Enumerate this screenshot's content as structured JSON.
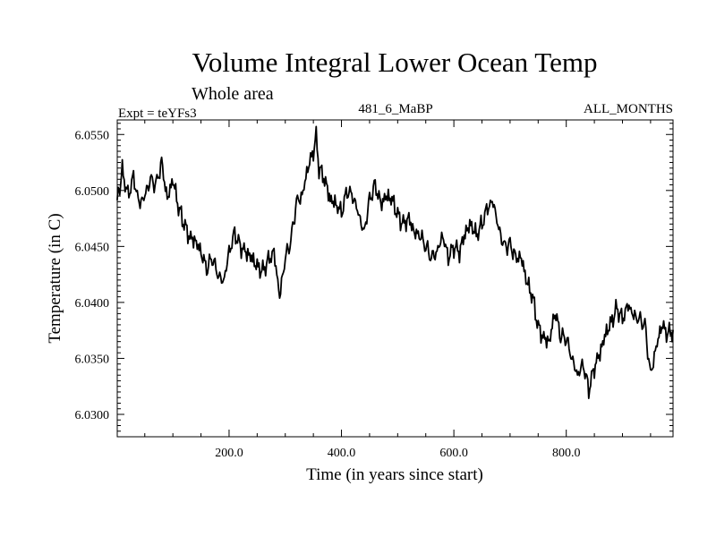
{
  "chart_data": {
    "type": "line",
    "title": "Volume Integral Lower Ocean Temp",
    "subtitle": "Whole area",
    "experiment_label": "Expt = teYFs3",
    "period_label": "481_6_MaBP",
    "months_label": "ALL_MONTHS",
    "xlabel": "Time (in years since start)",
    "ylabel": "Temperature (in C)",
    "xlim": [
      1,
      990
    ],
    "ylim": [
      6.028,
      6.0563
    ],
    "x_ticks": [
      {
        "value": 200,
        "label": "200.0"
      },
      {
        "value": 400,
        "label": "400.0"
      },
      {
        "value": 600,
        "label": "600.0"
      },
      {
        "value": 800,
        "label": "800.0"
      }
    ],
    "y_ticks": [
      {
        "value": 6.03,
        "label": "6.0300"
      },
      {
        "value": 6.035,
        "label": "6.0350"
      },
      {
        "value": 6.04,
        "label": "6.0400"
      },
      {
        "value": 6.045,
        "label": "6.0450"
      },
      {
        "value": 6.05,
        "label": "6.0500"
      },
      {
        "value": 6.055,
        "label": "6.0550"
      }
    ],
    "series": [
      {
        "name": "Volume Integral Lower Ocean Temp",
        "color": "#000000",
        "x": [
          1,
          10,
          20,
          30,
          40,
          50,
          60,
          70,
          80,
          90,
          100,
          110,
          120,
          130,
          140,
          150,
          160,
          170,
          180,
          190,
          200,
          210,
          220,
          230,
          240,
          250,
          260,
          270,
          280,
          290,
          300,
          310,
          320,
          330,
          340,
          350,
          355,
          360,
          370,
          380,
          390,
          400,
          410,
          420,
          430,
          440,
          450,
          460,
          470,
          480,
          490,
          500,
          510,
          520,
          530,
          540,
          550,
          560,
          570,
          580,
          590,
          600,
          610,
          620,
          630,
          640,
          650,
          660,
          670,
          680,
          690,
          700,
          710,
          720,
          730,
          740,
          750,
          760,
          770,
          780,
          790,
          800,
          810,
          820,
          830,
          840,
          850,
          860,
          870,
          880,
          890,
          900,
          910,
          920,
          930,
          940,
          950,
          960,
          970,
          980,
          990
        ],
        "values": [
          6.049,
          6.0518,
          6.0495,
          6.0512,
          6.0488,
          6.0495,
          6.051,
          6.0505,
          6.0525,
          6.0492,
          6.051,
          6.0485,
          6.047,
          6.0458,
          6.0455,
          6.0445,
          6.043,
          6.044,
          6.0425,
          6.0418,
          6.0445,
          6.0462,
          6.045,
          6.0445,
          6.044,
          6.0432,
          6.0428,
          6.0438,
          6.0445,
          6.0405,
          6.044,
          6.0455,
          6.049,
          6.0495,
          6.052,
          6.0535,
          6.0548,
          6.052,
          6.051,
          6.0492,
          6.0488,
          6.048,
          6.05,
          6.0495,
          6.048,
          6.0462,
          6.0492,
          6.0505,
          6.0488,
          6.0495,
          6.0492,
          6.0478,
          6.047,
          6.0475,
          6.0462,
          6.046,
          6.045,
          6.044,
          6.0445,
          6.046,
          6.044,
          6.045,
          6.0445,
          6.0462,
          6.047,
          6.046,
          6.047,
          6.0485,
          6.049,
          6.0465,
          6.045,
          6.0452,
          6.044,
          6.044,
          6.0418,
          6.0405,
          6.0378,
          6.0368,
          6.0365,
          6.0392,
          6.037,
          6.0368,
          6.035,
          6.0335,
          6.0345,
          6.0322,
          6.0342,
          6.0355,
          6.0372,
          6.0382,
          6.0395,
          6.0385,
          6.0398,
          6.0388,
          6.0385,
          6.038,
          6.0335,
          6.036,
          6.038,
          6.0372,
          6.0375
        ]
      }
    ]
  }
}
